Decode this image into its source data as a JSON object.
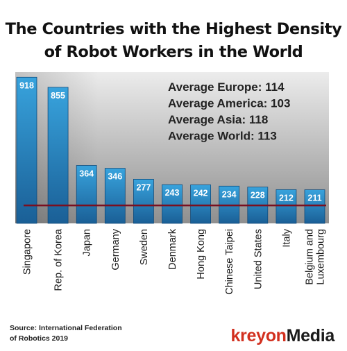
{
  "chart_data": {
    "type": "bar",
    "title_lines": [
      "The Countries with the Highest Density",
      "of Robot Workers in the World"
    ],
    "categories": [
      "Singapore",
      "Rep. of Korea",
      "Japan",
      "Germany",
      "Sweden",
      "Denmark",
      "Hong Kong",
      "Chinese Taipei",
      "United States",
      "Italy",
      "Belgium and Luxembourg"
    ],
    "category_lines": [
      [
        "Singapore"
      ],
      [
        "Rep. of Korea"
      ],
      [
        "Japan"
      ],
      [
        "Germany"
      ],
      [
        "Sweden"
      ],
      [
        "Denmark"
      ],
      [
        "Hong Kong"
      ],
      [
        "Chinese Taipei"
      ],
      [
        "United States"
      ],
      [
        "Italy"
      ],
      [
        "Belgium and",
        "Luxembourg"
      ]
    ],
    "values": [
      918,
      855,
      364,
      346,
      277,
      243,
      242,
      234,
      228,
      212,
      211
    ],
    "reference_line": 113,
    "ylim": [
      0,
      950
    ],
    "annotations": [
      "Average Europe: 114",
      "Average America: 103",
      "Average Asia: 118",
      "Average World: 113"
    ],
    "colors": {
      "bar_top": "#38a3dd",
      "bar_bottom": "#1a5f96",
      "bar_border": "#0f4a7a",
      "plot_bg_top": "#ececec",
      "plot_bg_bottom": "#8f8f8f",
      "reference_line": "#7a0f1f"
    }
  },
  "source": {
    "line1": "Source: International Federation",
    "line2": "of Robotics 2019"
  },
  "brand": {
    "part1": "kreyon",
    "part2": "Media"
  }
}
